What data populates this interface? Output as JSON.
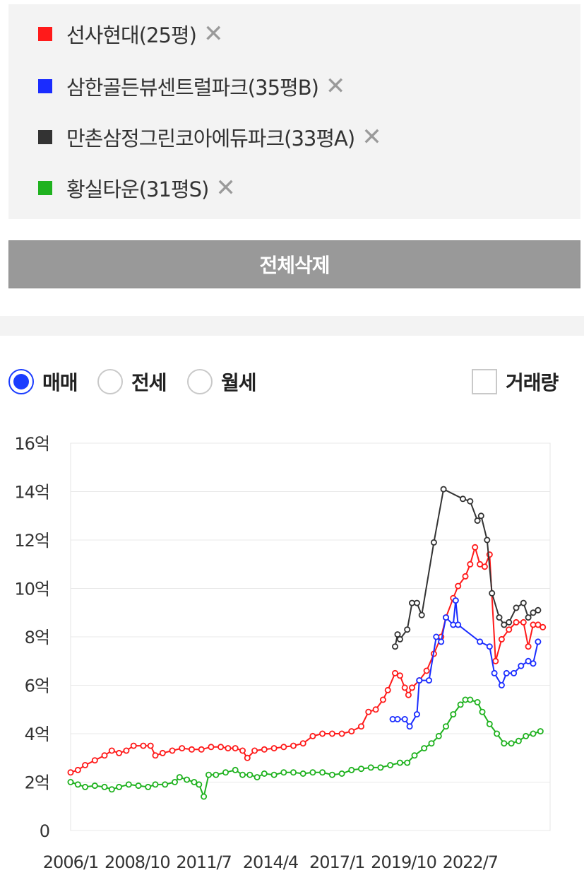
{
  "legend": {
    "items": [
      {
        "label": "선사현대(25평)",
        "color": "#ff1a1a",
        "remove": "✕"
      },
      {
        "label": "삼한골든뷰센트럴파크(35평B)",
        "color": "#1a2cff",
        "remove": "✕"
      },
      {
        "label": "만촌삼정그린코아에듀파크(33평A)",
        "color": "#333333",
        "remove": "✕"
      },
      {
        "label": "황실타운(31평S)",
        "color": "#1fb21f",
        "remove": "✕"
      }
    ]
  },
  "delete_all_label": "전체삭제",
  "controls": {
    "radios": [
      {
        "label": "매매",
        "checked": true
      },
      {
        "label": "전세",
        "checked": false
      },
      {
        "label": "월세",
        "checked": false
      }
    ],
    "volume_label": "거래량",
    "volume_checked": false
  },
  "chart_data": {
    "type": "line",
    "x_unit": "year",
    "xlim": [
      2006.0,
      2025.8
    ],
    "ylim": [
      0,
      16
    ],
    "yticks": [
      0,
      2,
      4,
      6,
      8,
      10,
      12,
      14,
      16
    ],
    "ytick_labels": [
      "0",
      "2억",
      "4억",
      "6억",
      "8억",
      "10억",
      "12억",
      "14억",
      "16억"
    ],
    "xticks": [
      2006.0,
      2008.75,
      2011.5,
      2014.25,
      2017.0,
      2019.75,
      2022.5
    ],
    "xtick_labels": [
      "2006/1",
      "2008/10",
      "2011/7",
      "2014/4",
      "2017/1",
      "2019/10",
      "2022/7"
    ],
    "grid": true,
    "series": [
      {
        "name": "선사현대(25평)",
        "color": "#ff1a1a",
        "points": [
          [
            2006.0,
            2.4
          ],
          [
            2006.3,
            2.5
          ],
          [
            2006.6,
            2.7
          ],
          [
            2007.0,
            2.9
          ],
          [
            2007.4,
            3.1
          ],
          [
            2007.7,
            3.3
          ],
          [
            2008.0,
            3.2
          ],
          [
            2008.3,
            3.3
          ],
          [
            2008.6,
            3.5
          ],
          [
            2009.0,
            3.5
          ],
          [
            2009.3,
            3.5
          ],
          [
            2009.5,
            3.1
          ],
          [
            2009.8,
            3.2
          ],
          [
            2010.2,
            3.3
          ],
          [
            2010.6,
            3.4
          ],
          [
            2011.0,
            3.35
          ],
          [
            2011.4,
            3.35
          ],
          [
            2011.8,
            3.45
          ],
          [
            2012.2,
            3.45
          ],
          [
            2012.5,
            3.4
          ],
          [
            2012.8,
            3.4
          ],
          [
            2013.1,
            3.3
          ],
          [
            2013.3,
            3.0
          ],
          [
            2013.6,
            3.3
          ],
          [
            2014.0,
            3.35
          ],
          [
            2014.4,
            3.4
          ],
          [
            2014.8,
            3.45
          ],
          [
            2015.2,
            3.5
          ],
          [
            2015.6,
            3.6
          ],
          [
            2016.0,
            3.9
          ],
          [
            2016.4,
            4.0
          ],
          [
            2016.8,
            4.0
          ],
          [
            2017.2,
            4.0
          ],
          [
            2017.6,
            4.1
          ],
          [
            2018.0,
            4.3
          ],
          [
            2018.3,
            4.9
          ],
          [
            2018.6,
            5.0
          ],
          [
            2018.9,
            5.4
          ],
          [
            2019.1,
            5.8
          ],
          [
            2019.4,
            6.5
          ],
          [
            2019.6,
            6.4
          ],
          [
            2019.8,
            5.9
          ],
          [
            2019.95,
            5.6
          ],
          [
            2020.1,
            5.9
          ],
          [
            2020.4,
            6.2
          ],
          [
            2020.7,
            6.6
          ],
          [
            2021.0,
            7.3
          ],
          [
            2021.3,
            8.0
          ],
          [
            2021.5,
            8.8
          ],
          [
            2021.8,
            9.6
          ],
          [
            2022.0,
            10.1
          ],
          [
            2022.3,
            10.5
          ],
          [
            2022.5,
            11.0
          ],
          [
            2022.7,
            11.7
          ],
          [
            2022.9,
            11.0
          ],
          [
            2023.1,
            10.9
          ],
          [
            2023.3,
            11.4
          ],
          [
            2023.55,
            7.0
          ],
          [
            2023.8,
            7.9
          ],
          [
            2024.1,
            8.3
          ],
          [
            2024.4,
            8.6
          ],
          [
            2024.7,
            8.6
          ],
          [
            2024.9,
            7.6
          ],
          [
            2025.1,
            8.5
          ],
          [
            2025.3,
            8.5
          ],
          [
            2025.5,
            8.4
          ]
        ]
      },
      {
        "name": "삼한골든뷰센트럴파크(35평B)",
        "color": "#1a2cff",
        "points": [
          [
            2019.3,
            4.6
          ],
          [
            2019.5,
            4.6
          ],
          [
            2019.8,
            4.6
          ],
          [
            2020.0,
            4.3
          ],
          [
            2020.3,
            4.8
          ],
          [
            2020.4,
            6.2
          ],
          [
            2020.8,
            6.2
          ],
          [
            2021.1,
            8.0
          ],
          [
            2021.3,
            7.8
          ],
          [
            2021.5,
            8.8
          ],
          [
            2021.8,
            8.5
          ],
          [
            2021.9,
            9.5
          ],
          [
            2022.0,
            8.5
          ],
          [
            2022.9,
            7.8
          ],
          [
            2023.3,
            7.6
          ],
          [
            2023.5,
            6.5
          ],
          [
            2023.8,
            6.0
          ],
          [
            2024.0,
            6.5
          ],
          [
            2024.3,
            6.5
          ],
          [
            2024.6,
            6.8
          ],
          [
            2024.9,
            7.0
          ],
          [
            2025.1,
            6.9
          ],
          [
            2025.3,
            7.8
          ]
        ]
      },
      {
        "name": "만촌삼정그린코아에듀파크(33평A)",
        "color": "#333333",
        "points": [
          [
            2019.4,
            7.6
          ],
          [
            2019.5,
            8.1
          ],
          [
            2019.6,
            7.9
          ],
          [
            2019.9,
            8.3
          ],
          [
            2020.1,
            9.4
          ],
          [
            2020.3,
            9.4
          ],
          [
            2020.5,
            8.9
          ],
          [
            2021.0,
            11.9
          ],
          [
            2021.4,
            14.1
          ],
          [
            2022.2,
            13.7
          ],
          [
            2022.5,
            13.6
          ],
          [
            2022.8,
            12.8
          ],
          [
            2022.95,
            13.0
          ],
          [
            2023.2,
            12.0
          ],
          [
            2023.4,
            9.8
          ],
          [
            2023.7,
            8.8
          ],
          [
            2023.9,
            8.5
          ],
          [
            2024.1,
            8.6
          ],
          [
            2024.4,
            9.2
          ],
          [
            2024.7,
            9.4
          ],
          [
            2024.9,
            8.8
          ],
          [
            2025.1,
            9.0
          ],
          [
            2025.3,
            9.1
          ]
        ]
      },
      {
        "name": "황실타운(31평S)",
        "color": "#1fb21f",
        "points": [
          [
            2006.0,
            2.0
          ],
          [
            2006.3,
            1.9
          ],
          [
            2006.6,
            1.8
          ],
          [
            2007.0,
            1.85
          ],
          [
            2007.4,
            1.8
          ],
          [
            2007.7,
            1.7
          ],
          [
            2008.0,
            1.8
          ],
          [
            2008.4,
            1.9
          ],
          [
            2008.8,
            1.85
          ],
          [
            2009.2,
            1.8
          ],
          [
            2009.5,
            1.9
          ],
          [
            2009.9,
            1.9
          ],
          [
            2010.3,
            2.0
          ],
          [
            2010.5,
            2.2
          ],
          [
            2010.8,
            2.1
          ],
          [
            2011.1,
            2.0
          ],
          [
            2011.3,
            1.9
          ],
          [
            2011.5,
            1.4
          ],
          [
            2011.7,
            2.3
          ],
          [
            2012.0,
            2.3
          ],
          [
            2012.4,
            2.4
          ],
          [
            2012.8,
            2.5
          ],
          [
            2013.1,
            2.3
          ],
          [
            2013.4,
            2.3
          ],
          [
            2013.7,
            2.2
          ],
          [
            2014.0,
            2.35
          ],
          [
            2014.4,
            2.3
          ],
          [
            2014.8,
            2.4
          ],
          [
            2015.2,
            2.4
          ],
          [
            2015.6,
            2.35
          ],
          [
            2016.0,
            2.4
          ],
          [
            2016.4,
            2.4
          ],
          [
            2016.8,
            2.3
          ],
          [
            2017.2,
            2.35
          ],
          [
            2017.6,
            2.5
          ],
          [
            2018.0,
            2.55
          ],
          [
            2018.4,
            2.6
          ],
          [
            2018.8,
            2.6
          ],
          [
            2019.2,
            2.7
          ],
          [
            2019.6,
            2.8
          ],
          [
            2019.9,
            2.8
          ],
          [
            2020.2,
            3.1
          ],
          [
            2020.6,
            3.4
          ],
          [
            2020.9,
            3.6
          ],
          [
            2021.2,
            3.9
          ],
          [
            2021.5,
            4.3
          ],
          [
            2021.8,
            4.8
          ],
          [
            2022.1,
            5.2
          ],
          [
            2022.3,
            5.4
          ],
          [
            2022.5,
            5.4
          ],
          [
            2022.8,
            5.3
          ],
          [
            2023.0,
            4.9
          ],
          [
            2023.3,
            4.4
          ],
          [
            2023.6,
            4.0
          ],
          [
            2023.9,
            3.6
          ],
          [
            2024.2,
            3.6
          ],
          [
            2024.5,
            3.7
          ],
          [
            2024.8,
            3.9
          ],
          [
            2025.1,
            4.0
          ],
          [
            2025.4,
            4.1
          ]
        ]
      }
    ]
  }
}
